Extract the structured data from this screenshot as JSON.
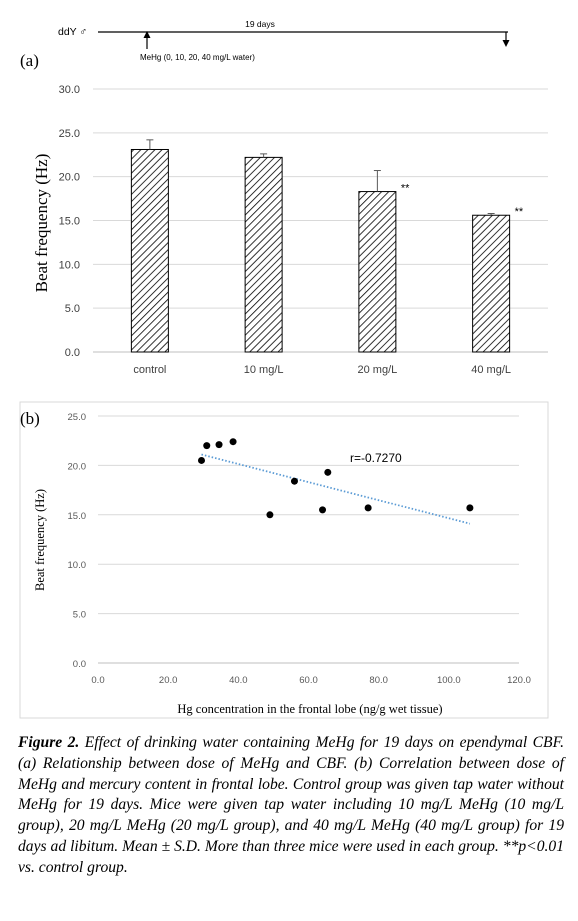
{
  "timeline": {
    "animal": "ddY ♂",
    "duration": "19 days",
    "treatment": "MeHg (0, 10, 20, 40 mg/L water)"
  },
  "chart_data": [
    {
      "panel": "(a)",
      "type": "bar",
      "ylabel": "Beat frequency (Hz)",
      "xlabel": "",
      "categories": [
        "control",
        "10 mg/L",
        "20 mg/L",
        "40 mg/L"
      ],
      "values": [
        23.1,
        22.2,
        18.3,
        15.6
      ],
      "errors": [
        1.1,
        0.4,
        2.4,
        0.2
      ],
      "significance": [
        "",
        "",
        "**",
        "**"
      ],
      "ylim": [
        0,
        30
      ],
      "yticks": [
        "0.0",
        "5.0",
        "10.0",
        "15.0",
        "20.0",
        "25.0",
        "30.0"
      ],
      "grid": true,
      "bar_fill": "diagonal-hatch"
    },
    {
      "panel": "(b)",
      "type": "scatter",
      "xlabel": "Hg concentration in the frontal lobe (ng/g wet tissue)",
      "ylabel": "Beat frequency (Hz)",
      "x": [
        29.5,
        31.0,
        34.5,
        38.5,
        49.0,
        56.0,
        64.0,
        65.5,
        77.0,
        106.0
      ],
      "y": [
        20.5,
        22.0,
        22.1,
        22.4,
        15.0,
        18.4,
        15.5,
        19.3,
        15.7,
        15.7
      ],
      "trendline": {
        "x": [
          29.5,
          106.0
        ],
        "y": [
          21.1,
          14.1
        ],
        "style": "dotted",
        "color": "#5b9bd5"
      },
      "annotation": "r=-0.7270",
      "xlim": [
        0,
        120
      ],
      "ylim": [
        0,
        25
      ],
      "xticks": [
        "0.0",
        "20.0",
        "40.0",
        "60.0",
        "80.0",
        "100.0",
        "120.0"
      ],
      "yticks": [
        "0.0",
        "5.0",
        "10.0",
        "15.0",
        "20.0",
        "25.0"
      ],
      "grid": true
    }
  ],
  "caption": {
    "label": "Figure 2.",
    "text": " Effect of drinking water containing MeHg for 19 days on ependymal CBF. (a) Relationship between dose of MeHg and CBF. (b) Correlation between dose of MeHg and mercury content in frontal lobe. Control group was given tap water without MeHg for 19 days. Mice were given tap water including 10 mg/L MeHg (10 mg/L group), 20 mg/L MeHg (20 mg/L group), and 40 mg/L MeHg (40 mg/L group) for 19 days ad libitum. Mean ± S.D. More than three mice were used in each group. **p<0.01 vs. control group."
  }
}
